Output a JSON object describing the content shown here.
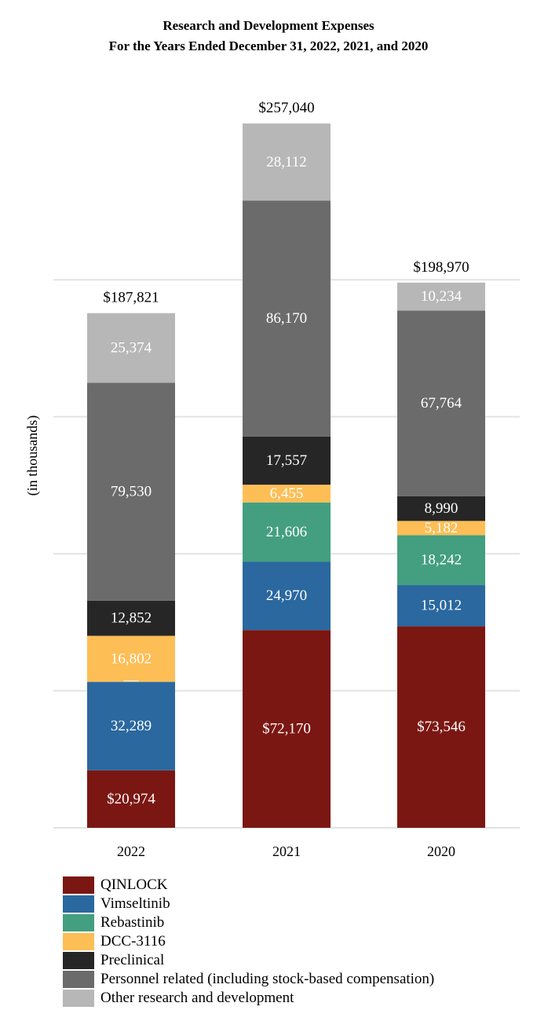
{
  "chart_data": {
    "type": "bar",
    "stacked": true,
    "title": "Research and Development Expenses",
    "subtitle": "For the Years Ended December 31, 2022, 2021, and 2020",
    "ylabel": "(in thousands)",
    "xlabel": "",
    "ylim": [
      0,
      270000
    ],
    "grid": true,
    "legend_position": "bottom",
    "categories": [
      "2022",
      "2021",
      "2020"
    ],
    "totals": [
      187821,
      257040,
      198970
    ],
    "total_labels": [
      "$187,821",
      "$257,040",
      "$198,970"
    ],
    "series": [
      {
        "name": "QINLOCK",
        "color": "#7b1712",
        "text_color": "#ffffff",
        "values": [
          20974,
          72170,
          73546
        ],
        "labels": [
          "$20,974",
          "$72,170",
          "$73,546"
        ]
      },
      {
        "name": "Vimseltinib",
        "color": "#2a689f",
        "text_color": "#ffffff",
        "values": [
          32289,
          24970,
          15012
        ],
        "labels": [
          "32,289",
          "24,970",
          "15,012"
        ]
      },
      {
        "name": "Rebastinib",
        "color": "#439f7f",
        "text_color": "#ffffff",
        "values": [
          0,
          21606,
          18242
        ],
        "labels": [
          "—",
          "21,606",
          "18,242"
        ]
      },
      {
        "name": "DCC-3116",
        "color": "#fdbe56",
        "text_color": "#ffffff",
        "values": [
          16802,
          6455,
          5182
        ],
        "labels": [
          "16,802",
          "6,455",
          "5,182"
        ]
      },
      {
        "name": "Preclinical",
        "color": "#262626",
        "text_color": "#ffffff",
        "values": [
          12852,
          17557,
          8990
        ],
        "labels": [
          "12,852",
          "17,557",
          "8,990"
        ]
      },
      {
        "name": "Personnel related (including stock-based compensation)",
        "color": "#6b6b6b",
        "text_color": "#ffffff",
        "values": [
          79530,
          86170,
          67764
        ],
        "labels": [
          "79,530",
          "86,170",
          "67,764"
        ]
      },
      {
        "name": "Other research and development",
        "color": "#b7b7b7",
        "text_color": "#ffffff",
        "values": [
          25374,
          28112,
          10234
        ],
        "labels": [
          "25,374",
          "28,112",
          "10,234"
        ]
      }
    ]
  }
}
